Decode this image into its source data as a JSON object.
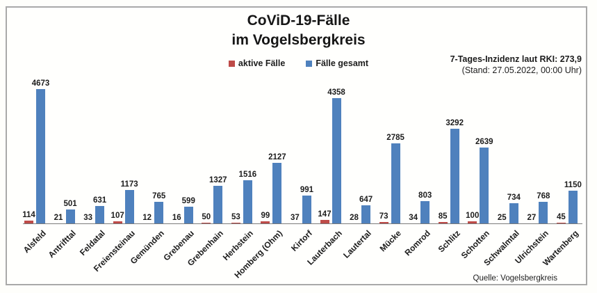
{
  "header": {
    "title_line1": "CoViD-19-Fälle",
    "title_line2": "im Vogelsbergkreis",
    "incidence_line1": "7-Tages-Inzidenz laut RKI: 273,9",
    "incidence_line2": "(Stand: 27.05.2022, 00:00 Uhr)"
  },
  "legend": {
    "items": [
      {
        "label": "aktive Fälle",
        "color": "#BE4B48"
      },
      {
        "label": "Fälle gesamt",
        "color": "#4F81BD"
      }
    ]
  },
  "footer": {
    "source": "Quelle: Vogelsbergkreis"
  },
  "chart_data": {
    "type": "bar",
    "title": "CoViD-19-Fälle im Vogelsbergkreis",
    "xlabel": "",
    "ylabel": "",
    "ylim": [
      0,
      4800
    ],
    "grid": false,
    "value_labels": true,
    "legend_position": "top",
    "categories": [
      "Alsfeld",
      "Antrifttal",
      "Feldatal",
      "Freiensteinau",
      "Gemünden",
      "Grebenau",
      "Grebenhain",
      "Herbstein",
      "Homberg (Ohm)",
      "Kirtorf",
      "Lauterbach",
      "Lautertal",
      "Mücke",
      "Romrod",
      "Schlitz",
      "Schotten",
      "Schwalmtal",
      "Ulrichstein",
      "Wartenberg"
    ],
    "series": [
      {
        "name": "aktive Fälle",
        "color": "#BE4B48",
        "values": [
          114,
          21,
          33,
          107,
          12,
          16,
          50,
          53,
          99,
          37,
          147,
          28,
          73,
          34,
          85,
          100,
          25,
          27,
          45
        ]
      },
      {
        "name": "Fälle gesamt",
        "color": "#4F81BD",
        "values": [
          4673,
          501,
          631,
          1173,
          765,
          599,
          1327,
          1516,
          2127,
          991,
          4358,
          647,
          2785,
          803,
          3292,
          2639,
          734,
          768,
          1150
        ]
      }
    ]
  }
}
